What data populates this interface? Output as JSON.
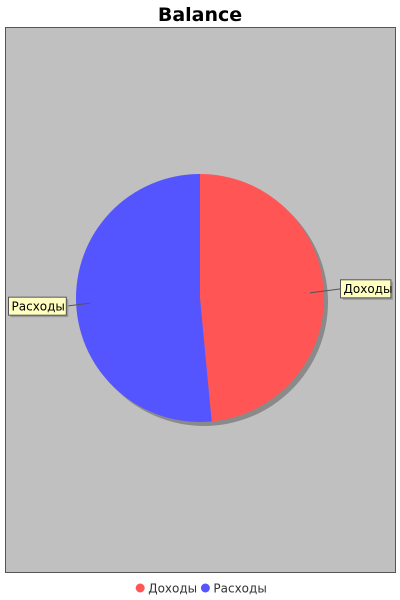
{
  "chart_data": {
    "type": "pie",
    "title": "Balance",
    "slices": [
      {
        "label": "Доходы",
        "value": 48.5,
        "color": "#ff5555"
      },
      {
        "label": "Расходы",
        "value": 51.5,
        "color": "#5555ff"
      }
    ],
    "legend": {
      "position": "bottom"
    },
    "plot_background": "#c0c0c0"
  }
}
